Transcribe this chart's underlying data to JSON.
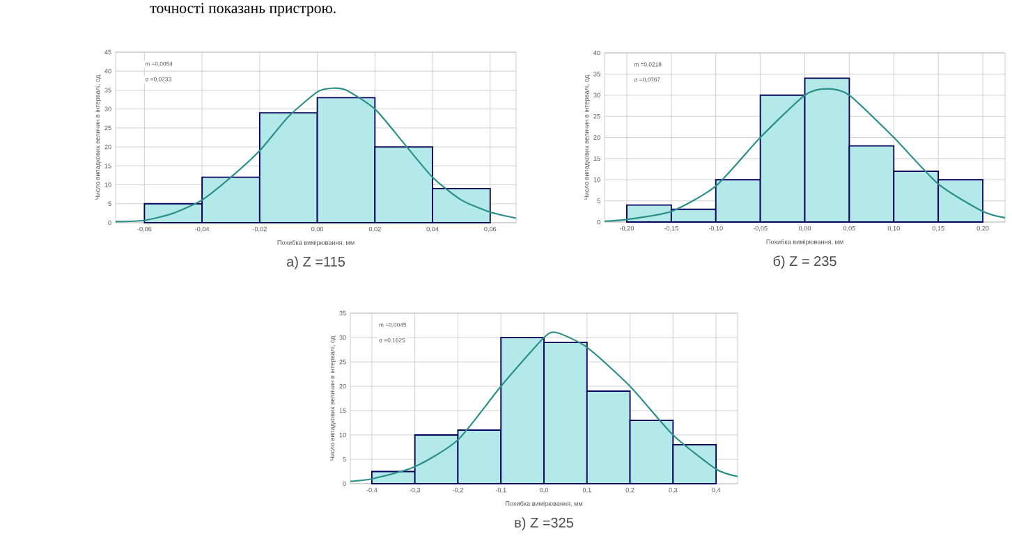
{
  "chart_data": [
    {
      "type": "histogram",
      "title": "а) Z =115",
      "xlabel": "Похибка вимірювання, мм",
      "ylabel": "Число випадкових величин в інтервалі, од",
      "annotations": [
        "m =0,0054",
        "σ =0,0233",
        "точності показань пристрою."
      ],
      "bins": [
        -0.06,
        -0.04,
        -0.02,
        0.0,
        0.02,
        0.04,
        0.06
      ],
      "values": [
        5,
        12,
        29,
        33,
        20,
        9
      ],
      "color": "#b3e9e9",
      "series": [
        {
          "type": "line",
          "color": "#2a8f88",
          "x": [
            -0.07,
            -0.06,
            -0.05,
            -0.04,
            -0.03,
            -0.02,
            -0.01,
            0.0,
            0.005,
            0.01,
            0.02,
            0.03,
            0.04,
            0.05,
            0.06,
            0.069
          ],
          "values": [
            0.3,
            0.6,
            2.5,
            6,
            12,
            19,
            28,
            34.5,
            35.5,
            35,
            30,
            21,
            12,
            6,
            2.8,
            1.2
          ]
        }
      ],
      "xlim": [
        -0.07,
        0.069
      ],
      "ylim": [
        0,
        45
      ],
      "xticks": [
        {
          "value": -0.06,
          "label": "-0,06"
        },
        {
          "value": -0.04,
          "label": "-0,04"
        },
        {
          "value": -0.02,
          "label": "-0,02"
        },
        {
          "value": 0.0,
          "label": "0,00"
        },
        {
          "value": 0.02,
          "label": "0,02"
        },
        {
          "value": 0.04,
          "label": "0,04"
        },
        {
          "value": 0.06,
          "label": "0,06"
        }
      ],
      "yticks": [
        0,
        5,
        10,
        15,
        20,
        25,
        30,
        35,
        40,
        45
      ],
      "grid": true
    },
    {
      "type": "histogram",
      "title": "б) Z = 235",
      "xlabel": "Похибка вимірювання, мм",
      "ylabel": "Число випадкових величин в інтервалі, од",
      "annotations": [
        "m =0,0218",
        "σ =0,0767"
      ],
      "bins": [
        -0.2,
        -0.15,
        -0.1,
        -0.05,
        0.0,
        0.05,
        0.1,
        0.15,
        0.2
      ],
      "values": [
        4,
        3,
        10,
        30,
        34,
        18,
        12,
        10
      ],
      "color": "#b3e9e9",
      "series": [
        {
          "type": "line",
          "color": "#2a8f88",
          "x": [
            -0.225,
            -0.2,
            -0.15,
            -0.1,
            -0.05,
            0.0,
            0.025,
            0.05,
            0.1,
            0.15,
            0.2,
            0.225
          ],
          "values": [
            0.2,
            0.6,
            2.5,
            8.5,
            20,
            30,
            31.5,
            30,
            20,
            9,
            2.5,
            1
          ]
        }
      ],
      "xlim": [
        -0.225,
        0.225
      ],
      "ylim": [
        0,
        40
      ],
      "xticks": [
        {
          "value": -0.2,
          "label": "-0,20"
        },
        {
          "value": -0.15,
          "label": "-0,15"
        },
        {
          "value": -0.1,
          "label": "-0,10"
        },
        {
          "value": -0.05,
          "label": "-0,05"
        },
        {
          "value": 0.0,
          "label": "0,00"
        },
        {
          "value": 0.05,
          "label": "0,05"
        },
        {
          "value": 0.1,
          "label": "0,10"
        },
        {
          "value": 0.15,
          "label": "0,15"
        },
        {
          "value": 0.2,
          "label": "0,20"
        }
      ],
      "yticks": [
        0,
        5,
        10,
        15,
        20,
        25,
        30,
        35,
        40
      ],
      "grid": true
    },
    {
      "type": "histogram",
      "title": "в) Z =325",
      "xlabel": "Похибка вимірювання, мм",
      "ylabel": "Число випадкових величин в інтервалі, од",
      "annotations": [
        "m =0,0045",
        "σ =0,1625"
      ],
      "bins": [
        -0.4,
        -0.3,
        -0.2,
        -0.1,
        0.0,
        0.1,
        0.2,
        0.3,
        0.4
      ],
      "values": [
        2.5,
        10,
        11,
        30,
        29,
        19,
        13,
        8
      ],
      "color": "#b3e9e9",
      "series": [
        {
          "type": "line",
          "color": "#2a8f88",
          "x": [
            -0.45,
            -0.4,
            -0.3,
            -0.2,
            -0.1,
            0.0,
            0.03,
            0.1,
            0.2,
            0.3,
            0.4,
            0.45
          ],
          "values": [
            0.5,
            1,
            3.5,
            9,
            20,
            30,
            31,
            28,
            20,
            10,
            3,
            1.5
          ]
        }
      ],
      "xlim": [
        -0.45,
        0.45
      ],
      "ylim": [
        0,
        35
      ],
      "xticks": [
        {
          "value": -0.4,
          "label": "-0,4"
        },
        {
          "value": -0.3,
          "label": "-0,3"
        },
        {
          "value": -0.2,
          "label": "-0,2"
        },
        {
          "value": -0.1,
          "label": "-0,1"
        },
        {
          "value": 0.0,
          "label": "0,0"
        },
        {
          "value": 0.1,
          "label": "0,1"
        },
        {
          "value": 0.2,
          "label": "0,2"
        },
        {
          "value": 0.3,
          "label": "0,3"
        },
        {
          "value": 0.4,
          "label": "0,4"
        }
      ],
      "yticks": [
        0,
        5,
        10,
        15,
        20,
        25,
        30,
        35
      ],
      "grid": true
    }
  ]
}
